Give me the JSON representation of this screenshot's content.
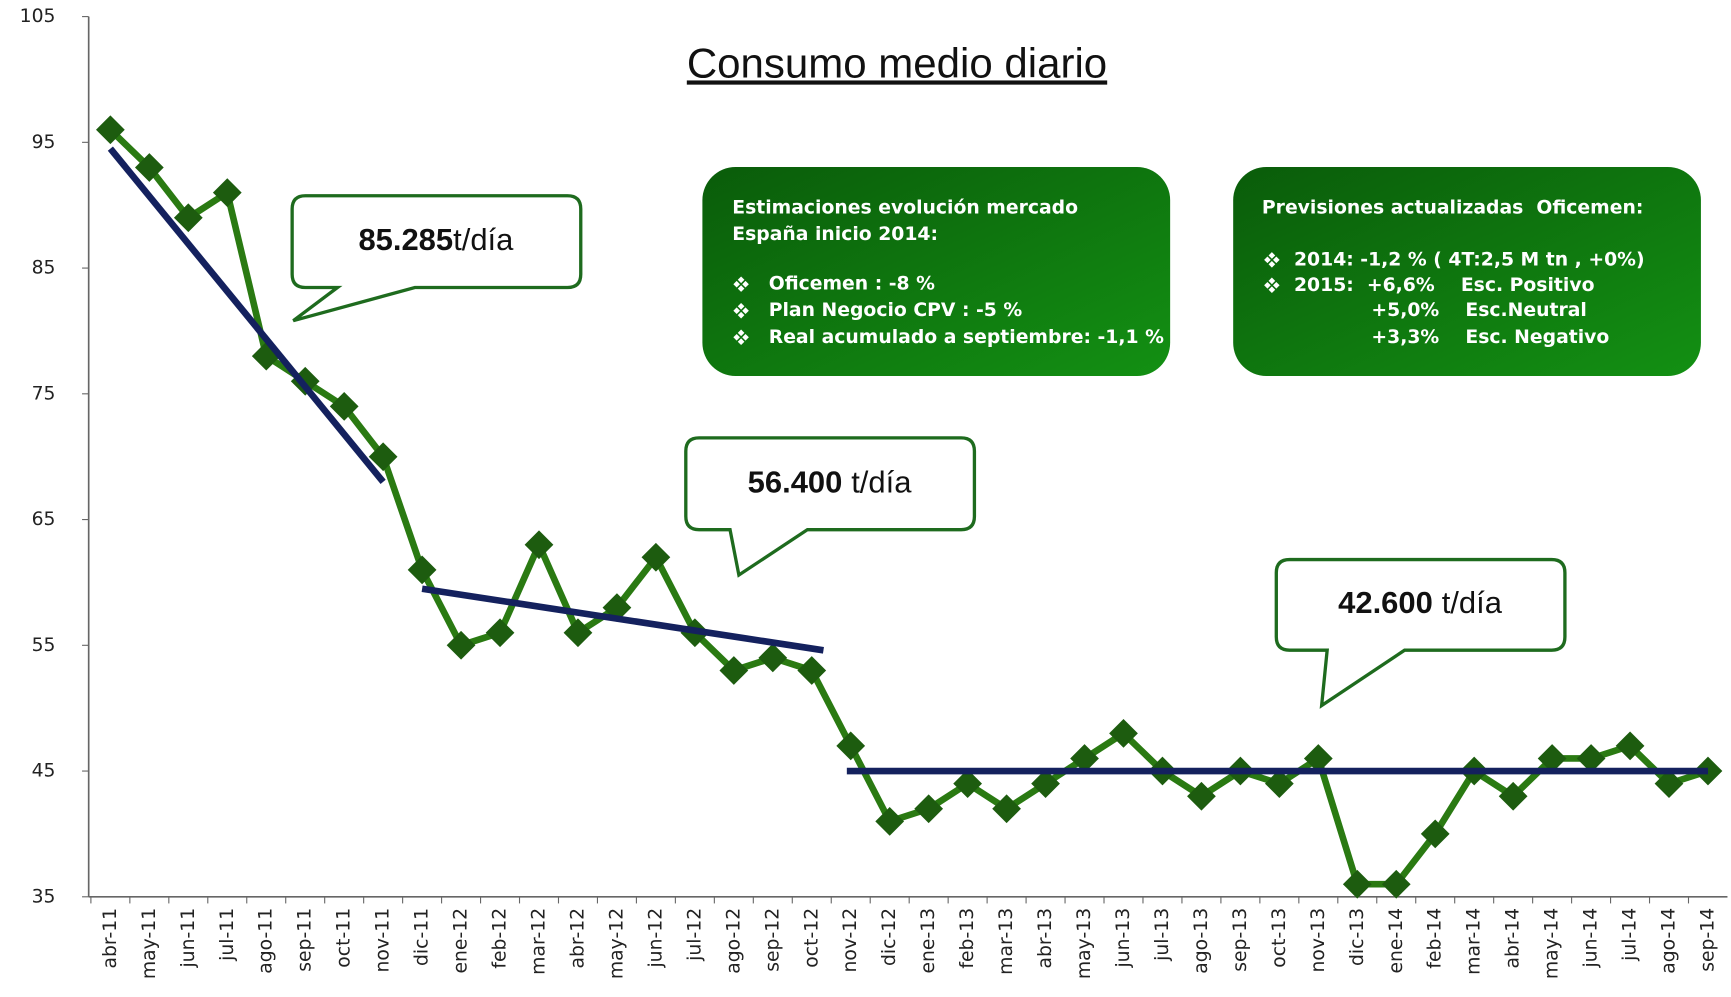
{
  "chart_data": {
    "type": "line",
    "title": "Consumo medio diario",
    "categories": [
      "abr-11",
      "may-11",
      "jun-11",
      "jul-11",
      "ago-11",
      "sep-11",
      "oct-11",
      "nov-11",
      "dic-11",
      "ene-12",
      "feb-12",
      "mar-12",
      "abr-12",
      "may-12",
      "jun-12",
      "jul-12",
      "ago-12",
      "sep-12",
      "oct-12",
      "nov-12",
      "dic-12",
      "ene-13",
      "feb-13",
      "mar-13",
      "abr-13",
      "may-13",
      "jun-13",
      "jul-13",
      "ago-13",
      "sep-13",
      "oct-13",
      "nov-13",
      "dic-13",
      "ene-14",
      "feb-14",
      "mar-14",
      "abr-14",
      "may-14",
      "jun-14",
      "jul-14",
      "ago-14",
      "sep-14"
    ],
    "values": [
      96,
      93,
      89,
      91,
      78,
      76,
      74,
      70,
      61,
      55,
      56,
      63,
      56,
      58,
      62,
      56,
      53,
      54,
      53,
      47,
      41,
      42,
      44,
      42,
      44,
      46,
      48,
      45,
      43,
      45,
      44,
      46,
      36,
      36,
      40,
      45,
      43,
      46,
      46,
      47,
      44,
      45
    ],
    "color": "#2a7a12",
    "marker_color": "#1d5c0f",
    "ylim": [
      35,
      105
    ],
    "yticks": [
      35,
      45,
      55,
      65,
      75,
      85,
      95,
      105
    ],
    "trend_color": "#14215e",
    "trend_lines": [
      {
        "x": [
          0,
          7
        ],
        "y": [
          94.5,
          68
        ]
      },
      {
        "x": [
          8,
          18.3
        ],
        "y": [
          59.5,
          54.6
        ]
      },
      {
        "x": [
          18.9,
          41
        ],
        "y": [
          45,
          45
        ]
      }
    ],
    "callouts": [
      {
        "bold": "85.285",
        "text": "t/día"
      },
      {
        "bold": "56.400",
        "text": "t/día"
      },
      {
        "bold": "42.600",
        "text": "t/día"
      }
    ],
    "boxes": [
      {
        "title": [
          "Estimaciones evolución mercado",
          "España inicio 2014:"
        ],
        "items": [
          "Oficemen : -8 %",
          "Plan Negocio CPV : -5 %",
          "Real acumulado a septiembre: -1,1 %"
        ]
      },
      {
        "title": [
          "Previsiones actualizadas  Oficemen:"
        ],
        "items": [
          "2014: -1,2 % ( 4T:2,5 M tn , +0%)",
          "2015:  +6,6%    Esc. Positivo"
        ],
        "continuation": [
          "+5,0%    Esc.Neutral",
          "+3,3%    Esc. Negativo"
        ]
      }
    ]
  }
}
